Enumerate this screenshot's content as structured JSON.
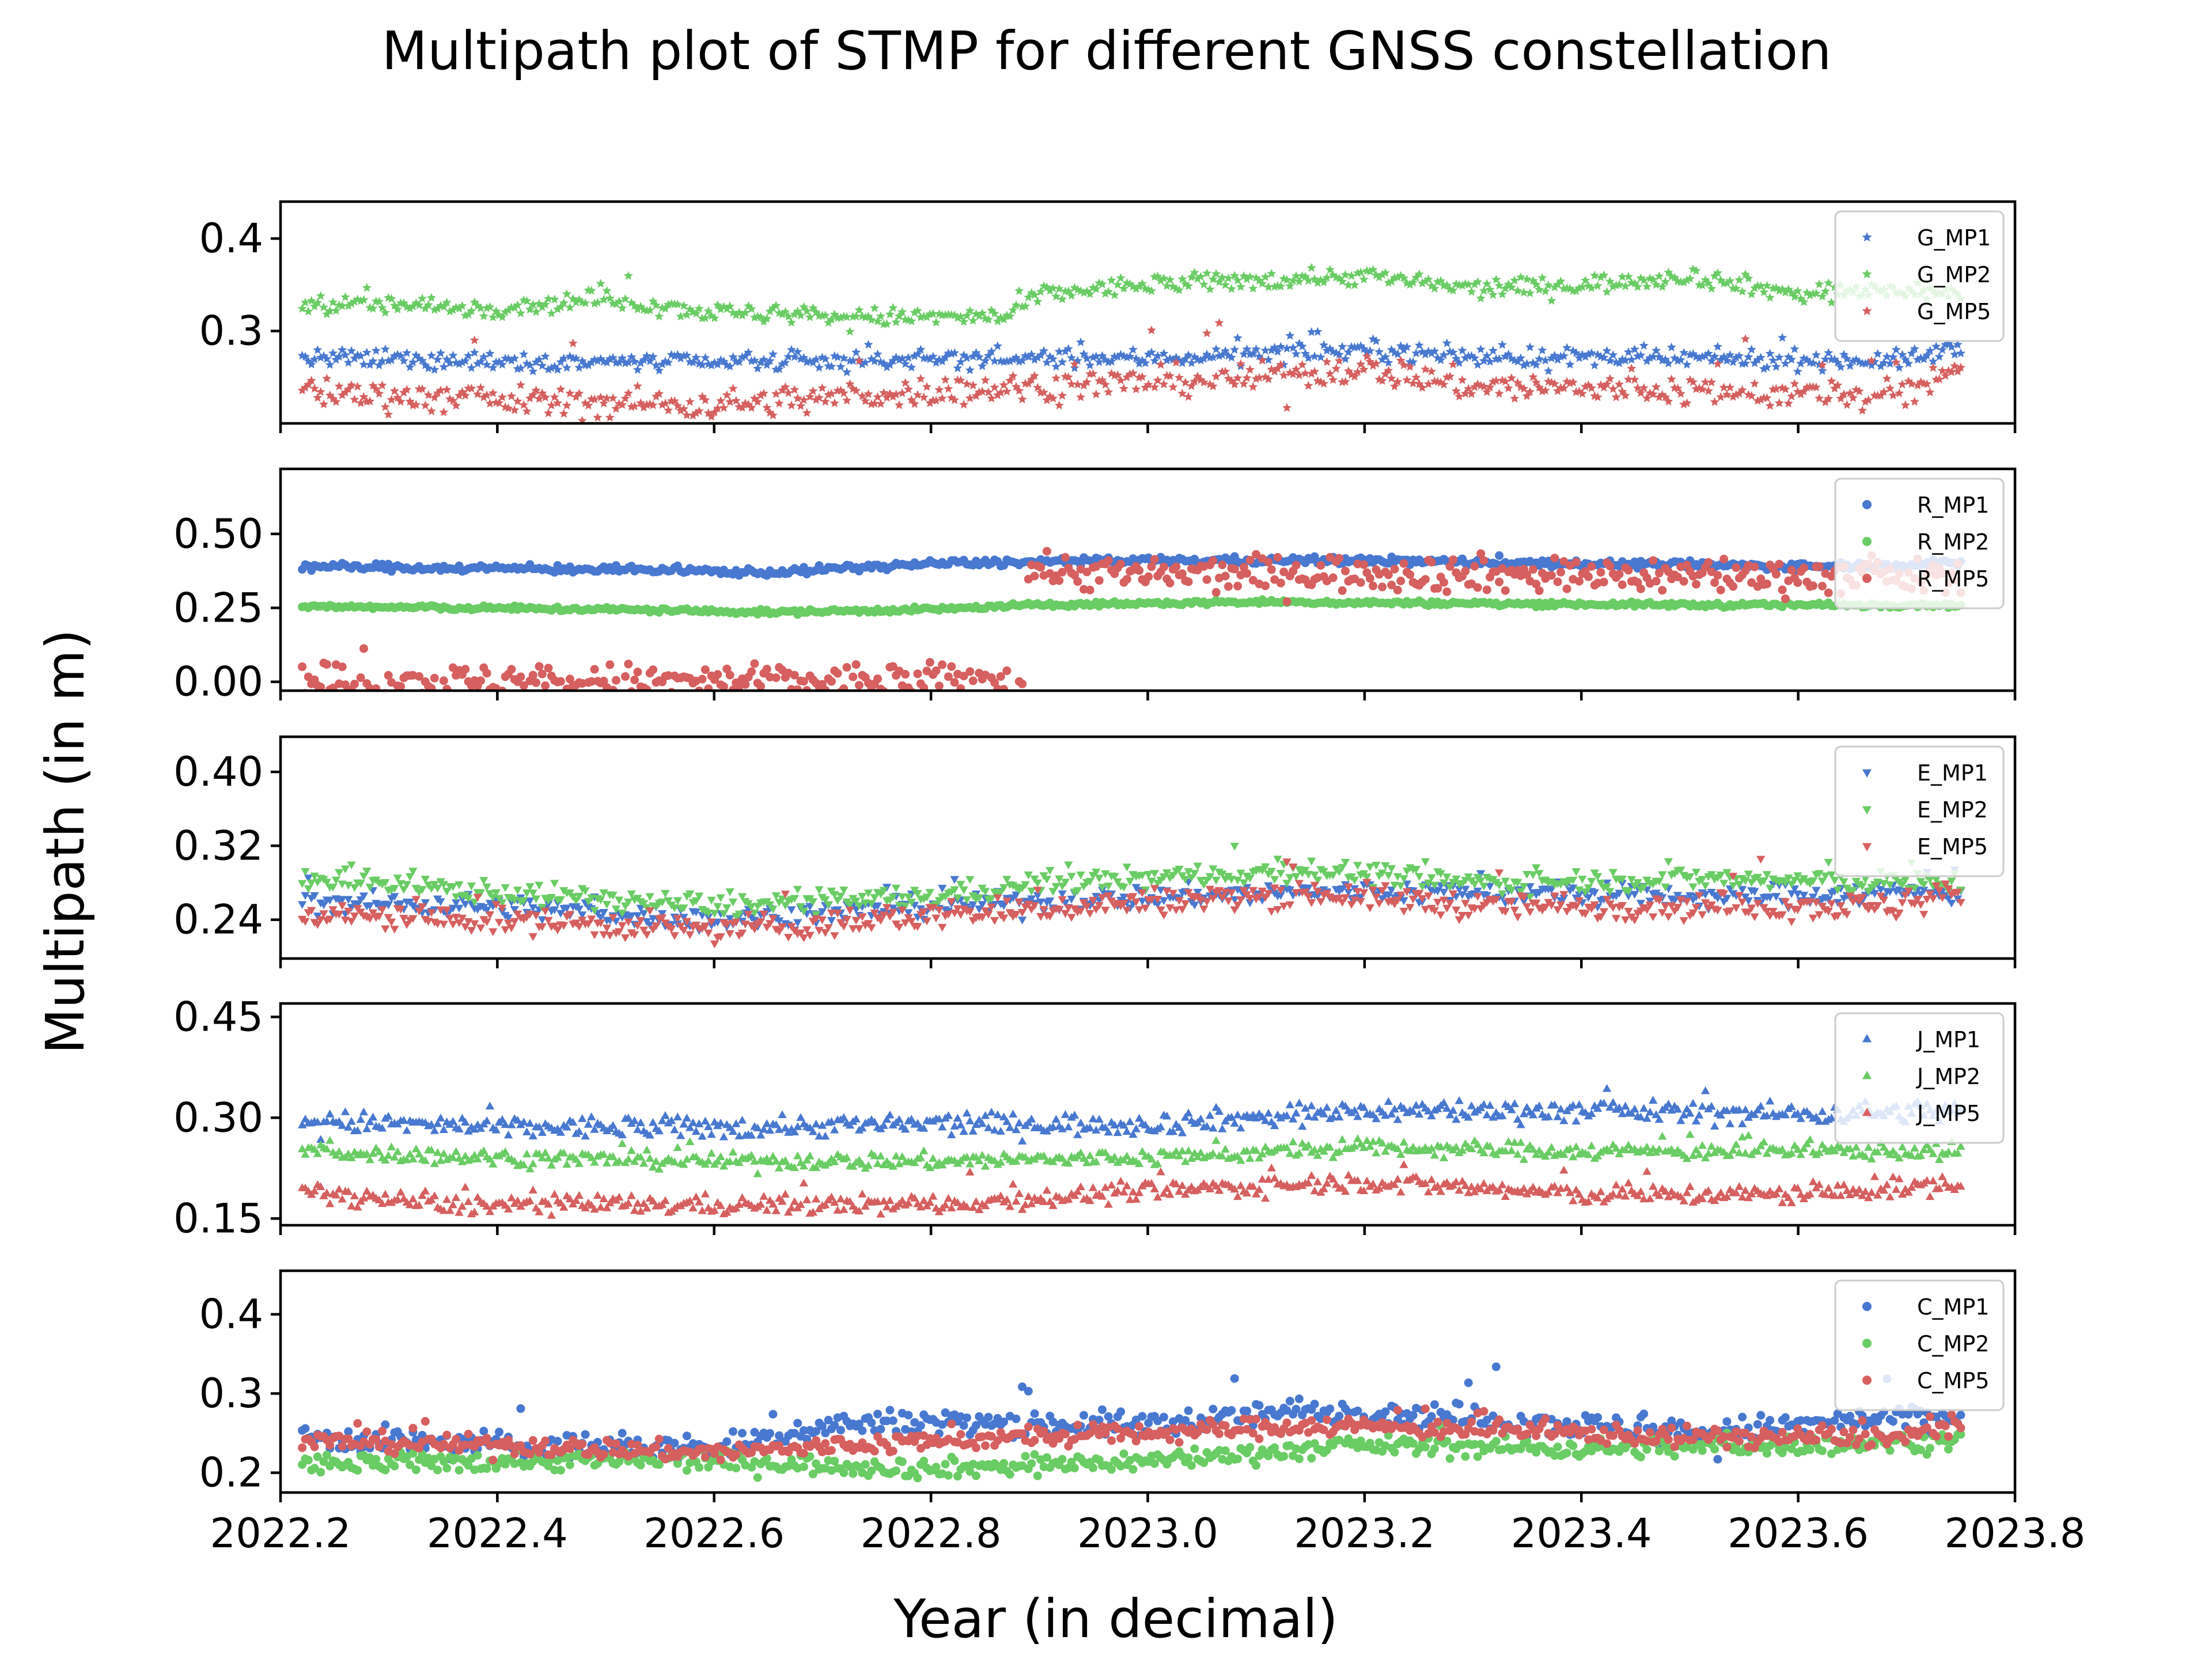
{
  "figure": {
    "title": "Multipath plot of STMP for different GNSS constellation",
    "xlabel": "Year (in decimal)",
    "ylabel": "Multipath (in m)"
  },
  "chart_data": {
    "type": "scatter",
    "colors": {
      "MP1": "#4878d0",
      "MP2": "#6acc64",
      "MP5": "#d65f5f"
    },
    "x_range": [
      2022.2,
      2023.8
    ],
    "x_ticks": [
      "2022.2",
      "2022.4",
      "2022.6",
      "2022.8",
      "2023.0",
      "2023.2",
      "2023.4",
      "2023.6",
      "2023.8"
    ],
    "x_data_span": [
      2022.22,
      2023.75
    ],
    "legend_position": "top-right",
    "grid": false,
    "panels": [
      {
        "marker": "star",
        "ylim": [
          0.2,
          0.44
        ],
        "yticks": [
          0.3,
          0.4
        ],
        "yticklabels": [
          "0.3",
          "0.4"
        ],
        "series": [
          {
            "name": "G_MP1",
            "x": [
              2022.22,
              2022.4,
              2022.6,
              2022.8,
              2023.0,
              2023.1,
              2023.2,
              2023.3,
              2023.5,
              2023.7,
              2023.74
            ],
            "y": [
              0.27,
              0.268,
              0.265,
              0.27,
              0.27,
              0.275,
              0.28,
              0.272,
              0.27,
              0.268,
              0.28
            ],
            "noise": 0.005,
            "outliers": 0.03
          },
          {
            "name": "G_MP2",
            "x": [
              2022.22,
              2022.4,
              2022.5,
              2022.6,
              2022.75,
              2022.87,
              2022.9,
              2023.0,
              2023.2,
              2023.3,
              2023.4,
              2023.5,
              2023.6,
              2023.7,
              2023.74
            ],
            "y": [
              0.33,
              0.325,
              0.335,
              0.32,
              0.315,
              0.315,
              0.34,
              0.35,
              0.36,
              0.345,
              0.35,
              0.36,
              0.34,
              0.345,
              0.34
            ],
            "noise": 0.005,
            "outliers": 0.03
          },
          {
            "name": "G_MP5",
            "x": [
              2022.22,
              2022.4,
              2022.6,
              2022.8,
              2023.0,
              2023.1,
              2023.2,
              2023.3,
              2023.5,
              2023.7,
              2023.74
            ],
            "y": [
              0.235,
              0.225,
              0.22,
              0.235,
              0.245,
              0.25,
              0.26,
              0.24,
              0.235,
              0.23,
              0.26
            ],
            "noise": 0.008,
            "outliers": 0.1
          }
        ]
      },
      {
        "marker": "circle",
        "ylim": [
          -0.03,
          0.72
        ],
        "yticks": [
          0.0,
          0.25,
          0.5
        ],
        "yticklabels": [
          "0.00",
          "0.25",
          "0.50"
        ],
        "series": [
          {
            "name": "R_MP1",
            "x": [
              2022.22,
              2022.5,
              2022.65,
              2022.8,
              2023.0,
              2023.2,
              2023.4,
              2023.6,
              2023.74
            ],
            "y": [
              0.39,
              0.38,
              0.37,
              0.4,
              0.41,
              0.41,
              0.4,
              0.39,
              0.4
            ],
            "noise": 0.006,
            "outliers": 0.02
          },
          {
            "name": "R_MP2",
            "x": [
              2022.22,
              2022.5,
              2022.65,
              2022.8,
              2022.9,
              2023.1,
              2023.3,
              2023.5,
              2023.74
            ],
            "y": [
              0.255,
              0.245,
              0.235,
              0.245,
              0.26,
              0.27,
              0.265,
              0.26,
              0.26
            ],
            "noise": 0.004,
            "outliers": 0.01
          },
          {
            "name": "R_MP5",
            "x": [
              2022.22,
              2022.888,
              2022.89,
              2023.0,
              2023.2,
              2023.4,
              2023.6,
              2023.74
            ],
            "y": [
              0.0,
              0.0,
              0.38,
              0.36,
              0.37,
              0.36,
              0.36,
              0.35
            ],
            "noise": 0.03,
            "outliers": 0.1
          }
        ]
      },
      {
        "marker": "triangle-down",
        "ylim": [
          0.198,
          0.438
        ],
        "yticks": [
          0.24,
          0.32,
          0.4
        ],
        "yticklabels": [
          "0.24",
          "0.32",
          "0.40"
        ],
        "series": [
          {
            "name": "E_MP1",
            "x": [
              2022.22,
              2022.4,
              2022.6,
              2022.8,
              2023.0,
              2023.15,
              2023.3,
              2023.5,
              2023.7,
              2023.74
            ],
            "y": [
              0.26,
              0.255,
              0.24,
              0.255,
              0.265,
              0.27,
              0.27,
              0.265,
              0.27,
              0.27
            ],
            "noise": 0.006,
            "outliers": 0.04
          },
          {
            "name": "E_MP2",
            "x": [
              2022.22,
              2022.4,
              2022.6,
              2022.8,
              2022.9,
              2023.0,
              2023.15,
              2023.3,
              2023.5,
              2023.7,
              2023.74
            ],
            "y": [
              0.285,
              0.27,
              0.255,
              0.265,
              0.28,
              0.285,
              0.295,
              0.28,
              0.285,
              0.28,
              0.28
            ],
            "noise": 0.006,
            "outliers": 0.03
          },
          {
            "name": "E_MP5",
            "x": [
              2022.22,
              2022.4,
              2022.6,
              2022.7,
              2022.8,
              2023.0,
              2023.15,
              2023.3,
              2023.5,
              2023.7,
              2023.74
            ],
            "y": [
              0.245,
              0.24,
              0.23,
              0.235,
              0.245,
              0.26,
              0.27,
              0.255,
              0.255,
              0.255,
              0.27
            ],
            "noise": 0.007,
            "outliers": 0.06
          }
        ]
      },
      {
        "marker": "triangle-up",
        "ylim": [
          0.14,
          0.47
        ],
        "yticks": [
          0.15,
          0.3,
          0.45
        ],
        "yticklabels": [
          "0.15",
          "0.30",
          "0.45"
        ],
        "series": [
          {
            "name": "J_MP1",
            "x": [
              2022.22,
              2022.4,
              2022.6,
              2022.8,
              2023.0,
              2023.2,
              2023.4,
              2023.6,
              2023.74
            ],
            "y": [
              0.295,
              0.285,
              0.285,
              0.29,
              0.29,
              0.31,
              0.31,
              0.305,
              0.31
            ],
            "noise": 0.008,
            "outliers": 0.05
          },
          {
            "name": "J_MP2",
            "x": [
              2022.22,
              2022.4,
              2022.6,
              2022.8,
              2023.0,
              2023.2,
              2023.4,
              2023.6,
              2023.74
            ],
            "y": [
              0.25,
              0.24,
              0.235,
              0.235,
              0.24,
              0.255,
              0.25,
              0.25,
              0.25
            ],
            "noise": 0.006,
            "outliers": 0.04
          },
          {
            "name": "J_MP5",
            "x": [
              2022.22,
              2022.35,
              2022.6,
              2022.8,
              2023.0,
              2023.2,
              2023.4,
              2023.6,
              2023.74
            ],
            "y": [
              0.19,
              0.17,
              0.17,
              0.17,
              0.19,
              0.205,
              0.185,
              0.185,
              0.2
            ],
            "noise": 0.007,
            "outliers": 0.05
          }
        ]
      },
      {
        "marker": "circle",
        "ylim": [
          0.175,
          0.455
        ],
        "yticks": [
          0.2,
          0.3,
          0.4
        ],
        "yticklabels": [
          "0.2",
          "0.3",
          "0.4"
        ],
        "series": [
          {
            "name": "C_MP1",
            "x": [
              2022.22,
              2022.4,
              2022.6,
              2022.7,
              2022.8,
              2023.0,
              2023.15,
              2023.3,
              2023.5,
              2023.7,
              2023.74
            ],
            "y": [
              0.245,
              0.235,
              0.23,
              0.26,
              0.265,
              0.26,
              0.28,
              0.27,
              0.25,
              0.27,
              0.27
            ],
            "noise": 0.008,
            "outliers": 0.08
          },
          {
            "name": "C_MP2",
            "x": [
              2022.22,
              2022.4,
              2022.6,
              2022.8,
              2023.0,
              2023.2,
              2023.4,
              2023.6,
              2023.74
            ],
            "y": [
              0.21,
              0.215,
              0.215,
              0.205,
              0.215,
              0.235,
              0.23,
              0.235,
              0.24
            ],
            "noise": 0.006,
            "outliers": 0.04
          },
          {
            "name": "C_MP5",
            "x": [
              2022.22,
              2022.4,
              2022.6,
              2022.8,
              2023.0,
              2023.15,
              2023.3,
              2023.5,
              2023.7,
              2023.74
            ],
            "y": [
              0.24,
              0.235,
              0.225,
              0.24,
              0.25,
              0.26,
              0.255,
              0.245,
              0.245,
              0.26
            ],
            "noise": 0.006,
            "outliers": 0.04
          }
        ]
      }
    ]
  }
}
